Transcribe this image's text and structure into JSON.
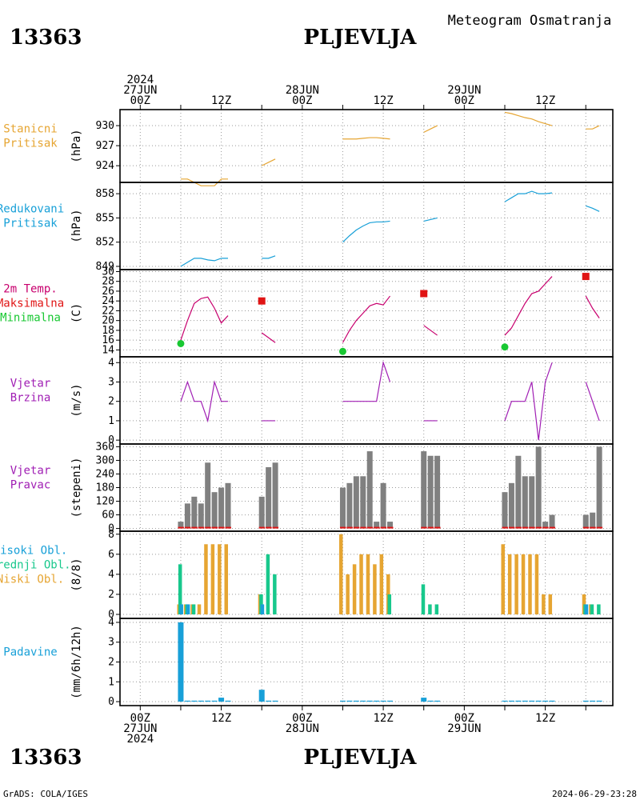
{
  "header": {
    "station_id": "13363",
    "station_name": "PLJEVLJA",
    "subtitle": "Meteogram Osmatranja"
  },
  "footer": {
    "credit": "GrADS: COLA/IGES",
    "timestamp": "2024-06-29-23:28"
  },
  "time_axis": {
    "top_labels": [
      {
        "lines": [
          "2024",
          "27JUN",
          "00Z"
        ],
        "hour": 0
      },
      {
        "lines": [
          "12Z"
        ],
        "hour": 12
      },
      {
        "lines": [
          "28JUN",
          "00Z"
        ],
        "hour": 24
      },
      {
        "lines": [
          "12Z"
        ],
        "hour": 36
      },
      {
        "lines": [
          "29JUN",
          "00Z"
        ],
        "hour": 48
      },
      {
        "lines": [
          "12Z"
        ],
        "hour": 60
      }
    ],
    "bottom_labels": [
      {
        "lines": [
          "00Z",
          "27JUN",
          "2024"
        ],
        "hour": 0
      },
      {
        "lines": [
          "12Z"
        ],
        "hour": 12
      },
      {
        "lines": [
          "00Z",
          "28JUN"
        ],
        "hour": 24
      },
      {
        "lines": [
          "12Z"
        ],
        "hour": 36
      },
      {
        "lines": [
          "00Z",
          "29JUN"
        ],
        "hour": 48
      },
      {
        "lines": [
          "12Z"
        ],
        "hour": 60
      }
    ],
    "range_hours": [
      -3,
      70
    ]
  },
  "chart_data": [
    {
      "type": "line",
      "legend": [
        {
          "text": "Stanicni",
          "color": "#e6a532"
        },
        {
          "text": "Pritisak",
          "color": "#e6a532"
        }
      ],
      "ylabel": "(hPa)",
      "yticks": [
        924,
        927,
        930
      ],
      "ylim": [
        921.5,
        932.4
      ],
      "color": "#e6a532",
      "series": [
        {
          "x": [
            6,
            7,
            8,
            9,
            10,
            11,
            12,
            13
          ],
          "y": [
            922.0,
            922.0,
            921.5,
            921.0,
            921.0,
            921.0,
            922.0,
            922.0
          ]
        },
        {
          "x": [
            18,
            19,
            20
          ],
          "y": [
            924.0,
            924.5,
            925.0
          ]
        },
        {
          "x": [
            30,
            31,
            32,
            33,
            34,
            35,
            36,
            37
          ],
          "y": [
            928.0,
            928.0,
            928.0,
            928.1,
            928.2,
            928.2,
            928.1,
            928.0
          ]
        },
        {
          "x": [
            42,
            43,
            44
          ],
          "y": [
            929.0,
            929.5,
            930.0
          ]
        },
        {
          "x": [
            54,
            55,
            56,
            57,
            58,
            59,
            60,
            61
          ],
          "y": [
            932.0,
            931.8,
            931.5,
            931.2,
            931.0,
            930.6,
            930.3,
            930.0
          ]
        },
        {
          "x": [
            66,
            67,
            68
          ],
          "y": [
            929.5,
            929.5,
            930.0
          ]
        }
      ]
    },
    {
      "type": "line",
      "legend": [
        {
          "text": "Redukovani",
          "color": "#18a0d8"
        },
        {
          "text": "Pritisak",
          "color": "#18a0d8"
        }
      ],
      "ylabel": "(hPa)",
      "yticks": [
        849,
        852,
        855,
        858
      ],
      "ylim": [
        848.6,
        859.4
      ],
      "color": "#18a0d8",
      "series": [
        {
          "x": [
            6,
            7,
            8,
            9,
            10,
            11,
            12,
            13
          ],
          "y": [
            849.0,
            849.5,
            850.0,
            850.0,
            849.8,
            849.7,
            850.0,
            850.0
          ]
        },
        {
          "x": [
            18,
            19,
            20
          ],
          "y": [
            850.0,
            850.0,
            850.3
          ]
        },
        {
          "x": [
            30,
            31,
            32,
            33,
            34,
            35,
            36,
            37
          ],
          "y": [
            852.0,
            852.8,
            853.5,
            854.0,
            854.4,
            854.5,
            854.5,
            854.6
          ]
        },
        {
          "x": [
            42,
            43,
            44
          ],
          "y": [
            854.6,
            854.8,
            855.0
          ]
        },
        {
          "x": [
            54,
            55,
            56,
            57,
            58,
            59,
            60,
            61
          ],
          "y": [
            857.0,
            857.5,
            858.0,
            858.0,
            858.3,
            858.0,
            858.0,
            858.1
          ]
        },
        {
          "x": [
            66,
            67,
            68
          ],
          "y": [
            856.5,
            856.2,
            855.8
          ]
        }
      ]
    },
    {
      "type": "line",
      "legend": [
        {
          "text": "2m Temp.",
          "color": "#c8006e"
        },
        {
          "text": "Maksimalna",
          "color": "#e01414"
        },
        {
          "text": "Minimalna",
          "color": "#18c832"
        }
      ],
      "ylabel": "(C)",
      "yticks": [
        14,
        16,
        18,
        20,
        22,
        24,
        26,
        28,
        30
      ],
      "ylim": [
        12.6,
        30.4
      ],
      "color": "#c8006e",
      "series": [
        {
          "x": [
            6,
            7,
            8,
            9,
            10,
            11,
            12,
            13
          ],
          "y": [
            16.0,
            20.0,
            23.5,
            24.5,
            24.8,
            22.5,
            19.5,
            21.0
          ]
        },
        {
          "x": [
            18,
            19,
            20
          ],
          "y": [
            17.5,
            16.5,
            15.5
          ]
        },
        {
          "x": [
            30,
            31,
            32,
            33,
            34,
            35,
            36,
            37
          ],
          "y": [
            15.5,
            18.0,
            20.0,
            21.5,
            23.0,
            23.5,
            23.2,
            25.0
          ]
        },
        {
          "x": [
            42,
            43,
            44
          ],
          "y": [
            19.0,
            18.0,
            17.0
          ]
        },
        {
          "x": [
            54,
            55,
            56,
            57,
            58,
            59,
            60,
            61
          ],
          "y": [
            17.0,
            18.5,
            21.0,
            23.5,
            25.5,
            26.0,
            27.5,
            29.0
          ]
        },
        {
          "x": [
            66,
            67,
            68
          ],
          "y": [
            25.0,
            22.5,
            20.5
          ]
        }
      ],
      "max_markers": {
        "color": "#e01414",
        "x": [
          18,
          42,
          66
        ],
        "y": [
          24.0,
          25.5,
          29.0
        ]
      },
      "min_markers": {
        "color": "#18c832",
        "x": [
          6,
          30,
          54
        ],
        "y": [
          15.3,
          13.7,
          14.6
        ]
      }
    },
    {
      "type": "line",
      "legend": [
        {
          "text": "Vjetar",
          "color": "#a01eb4"
        },
        {
          "text": "Brzina",
          "color": "#a01eb4"
        }
      ],
      "ylabel": "(m/s)",
      "yticks": [
        0,
        1,
        2,
        3,
        4
      ],
      "ylim": [
        -0.2,
        4.3
      ],
      "color": "#a01eb4",
      "series": [
        {
          "x": [
            6,
            7,
            8,
            9,
            10,
            11,
            12,
            13
          ],
          "y": [
            2,
            3,
            2,
            2,
            1,
            3,
            2,
            2
          ]
        },
        {
          "x": [
            18,
            19,
            20
          ],
          "y": [
            1,
            1,
            1
          ]
        },
        {
          "x": [
            30,
            31,
            32,
            33,
            34,
            35,
            36,
            37
          ],
          "y": [
            2,
            2,
            2,
            2,
            2,
            2,
            4,
            3
          ]
        },
        {
          "x": [
            42,
            43,
            44
          ],
          "y": [
            1,
            1,
            1
          ]
        },
        {
          "x": [
            54,
            55,
            56,
            57,
            58,
            59,
            60,
            61
          ],
          "y": [
            1,
            2,
            2,
            2,
            3,
            0,
            3,
            4
          ]
        },
        {
          "x": [
            66,
            67,
            68
          ],
          "y": [
            3,
            2,
            1
          ]
        }
      ]
    },
    {
      "type": "bar",
      "legend": [
        {
          "text": "Vjetar",
          "color": "#a01eb4"
        },
        {
          "text": "Pravac",
          "color": "#a01eb4"
        }
      ],
      "ylabel": "(stepeni)",
      "yticks": [
        0,
        60,
        120,
        180,
        240,
        300,
        360
      ],
      "ylim": [
        -12,
        372
      ],
      "color": "#808080",
      "baseline_color": "#e01414",
      "x": [
        6,
        7,
        8,
        9,
        10,
        11,
        12,
        13,
        18,
        19,
        20,
        30,
        31,
        32,
        33,
        34,
        35,
        36,
        37,
        42,
        43,
        44,
        54,
        55,
        56,
        57,
        58,
        59,
        60,
        61,
        66,
        67,
        68
      ],
      "values": [
        30,
        110,
        140,
        110,
        290,
        160,
        180,
        200,
        140,
        270,
        290,
        180,
        200,
        230,
        230,
        340,
        30,
        200,
        30,
        340,
        320,
        320,
        160,
        200,
        320,
        230,
        230,
        360,
        30,
        60,
        60,
        70,
        360
      ]
    },
    {
      "type": "bar",
      "legend": [
        {
          "text": "Visoki Obl.",
          "color": "#18a0d8"
        },
        {
          "text": "Srednji Obl.",
          "color": "#18c88c"
        },
        {
          "text": "Niski Obl.",
          "color": "#e6a532"
        }
      ],
      "ylabel": "(8/8)",
      "yticks": [
        0,
        2,
        4,
        6,
        8
      ],
      "ylim": [
        -0.4,
        8.3
      ],
      "colors": {
        "visoki": "#18a0d8",
        "srednji": "#18c88c",
        "niski": "#e6a532"
      },
      "x": [
        6,
        7,
        8,
        9,
        10,
        11,
        12,
        13,
        18,
        19,
        20,
        30,
        31,
        32,
        33,
        34,
        35,
        36,
        37,
        42,
        43,
        44,
        54,
        55,
        56,
        57,
        58,
        59,
        60,
        61,
        66,
        67,
        68
      ],
      "visoki": [
        1,
        1,
        0,
        0,
        0,
        0,
        0,
        0,
        1,
        0,
        0,
        0,
        0,
        0,
        0,
        0,
        0,
        0,
        0,
        0,
        0,
        0,
        0,
        0,
        0,
        0,
        0,
        0,
        0,
        0,
        1,
        0,
        0
      ],
      "srednji": [
        5,
        1,
        1,
        0,
        0,
        0,
        0,
        0,
        2,
        6,
        4,
        0,
        0,
        0,
        0,
        0,
        0,
        0,
        2,
        3,
        1,
        1,
        0,
        0,
        0,
        0,
        0,
        0,
        0,
        0,
        1,
        1,
        1
      ],
      "niski": [
        1,
        1,
        1,
        1,
        7,
        7,
        7,
        7,
        2,
        0,
        0,
        8,
        4,
        5,
        6,
        6,
        5,
        6,
        4,
        0,
        0,
        0,
        7,
        6,
        6,
        6,
        6,
        6,
        2,
        2,
        2,
        1,
        0
      ]
    },
    {
      "type": "bar",
      "legend": [
        {
          "text": "Padavine",
          "color": "#18a0d8"
        }
      ],
      "ylabel": "(mm/6h/12h)",
      "yticks": [
        0,
        1,
        2,
        3,
        4
      ],
      "ylim": [
        -0.2,
        4.2
      ],
      "color": "#18a0d8",
      "x": [
        6,
        7,
        8,
        9,
        10,
        11,
        12,
        13,
        18,
        19,
        20,
        30,
        31,
        32,
        33,
        34,
        35,
        36,
        37,
        42,
        43,
        44,
        54,
        55,
        56,
        57,
        58,
        59,
        60,
        61,
        66,
        67,
        68
      ],
      "values": [
        4.0,
        0.05,
        0.05,
        0.05,
        0.05,
        0.05,
        0.2,
        0.05,
        0.6,
        0.05,
        0.05,
        0.05,
        0.05,
        0.05,
        0.05,
        0.05,
        0.05,
        0.05,
        0.05,
        0.2,
        0.05,
        0.05,
        0.05,
        0.05,
        0.05,
        0.05,
        0.05,
        0.05,
        0.05,
        0.05,
        0.05,
        0.05,
        0.05
      ]
    }
  ]
}
